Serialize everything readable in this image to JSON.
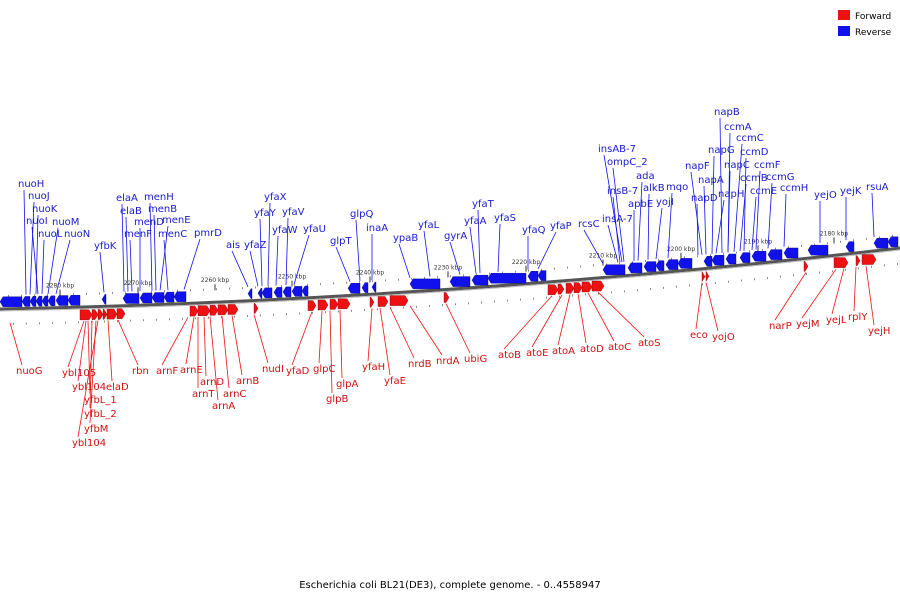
{
  "caption": "Escherichia coli BL21(DE3), complete genome. - 0..4558947",
  "legend": [
    {
      "label": "Forward",
      "color": "#ee1111"
    },
    {
      "label": "Reverse",
      "color": "#1111ee"
    }
  ],
  "colors": {
    "forward": "#ee1111",
    "reverse": "#1111ee",
    "forward_label": "#cc1111",
    "reverse_label": "#1a1acc",
    "axis": "#666666"
  },
  "axis_ticks": [
    "2280 kbp",
    "2270 kbp",
    "2260 kbp",
    "2250 kbp",
    "2240 kbp",
    "2230 kbp",
    "2220 kbp",
    "2210 kbp",
    "2200 kbp",
    "2190 kbp",
    "2180 kbp"
  ],
  "reverse_genes": [
    "nuoH",
    "nuoJ",
    "nuoK",
    "nuoI",
    "nuoL",
    "nuoM",
    "nuoN",
    "yfbK",
    "elaA",
    "elaB",
    "menF",
    "menD",
    "menH",
    "menB",
    "menE",
    "menC",
    "pmrD",
    "ais",
    "yfaZ",
    "yfaY",
    "yfaX",
    "yfaW",
    "yfaV",
    "yfaU",
    "glpT",
    "glpQ",
    "inaA",
    "ypaB",
    "yfaL",
    "gyrA",
    "yfaA",
    "yfaT",
    "yfaS",
    "yfaQ",
    "yfaP",
    "rcsC",
    "insA-7",
    "insB-7",
    "insAB-7",
    "ompC_2",
    "apbE",
    "ada",
    "alkB",
    "yojI",
    "mqo",
    "napD",
    "napF",
    "napA",
    "napG",
    "napH",
    "napC",
    "napB",
    "ccmA",
    "ccmB",
    "ccmC",
    "ccmD",
    "ccmE",
    "ccmF",
    "ccmG",
    "ccmH",
    "yejO",
    "yejK",
    "rsuA"
  ],
  "forward_genes": [
    "nuoG",
    "ybl105",
    "ybl104",
    "yfbL_1",
    "yfbL_2",
    "yfbM",
    "ybl104",
    "elaD",
    "rbn",
    "arnF",
    "arnE",
    "arnT",
    "arnD",
    "arnA",
    "arnC",
    "arnB",
    "nudI",
    "yfaD",
    "glpC",
    "glpB",
    "glpA",
    "yfaH",
    "yfaE",
    "nrdB",
    "nrdA",
    "ubiG",
    "atoB",
    "atoE",
    "atoA",
    "atoD",
    "atoC",
    "atoS",
    "eco",
    "yojO",
    "narP",
    "yejM",
    "yejL",
    "rplY",
    "yejH"
  ]
}
